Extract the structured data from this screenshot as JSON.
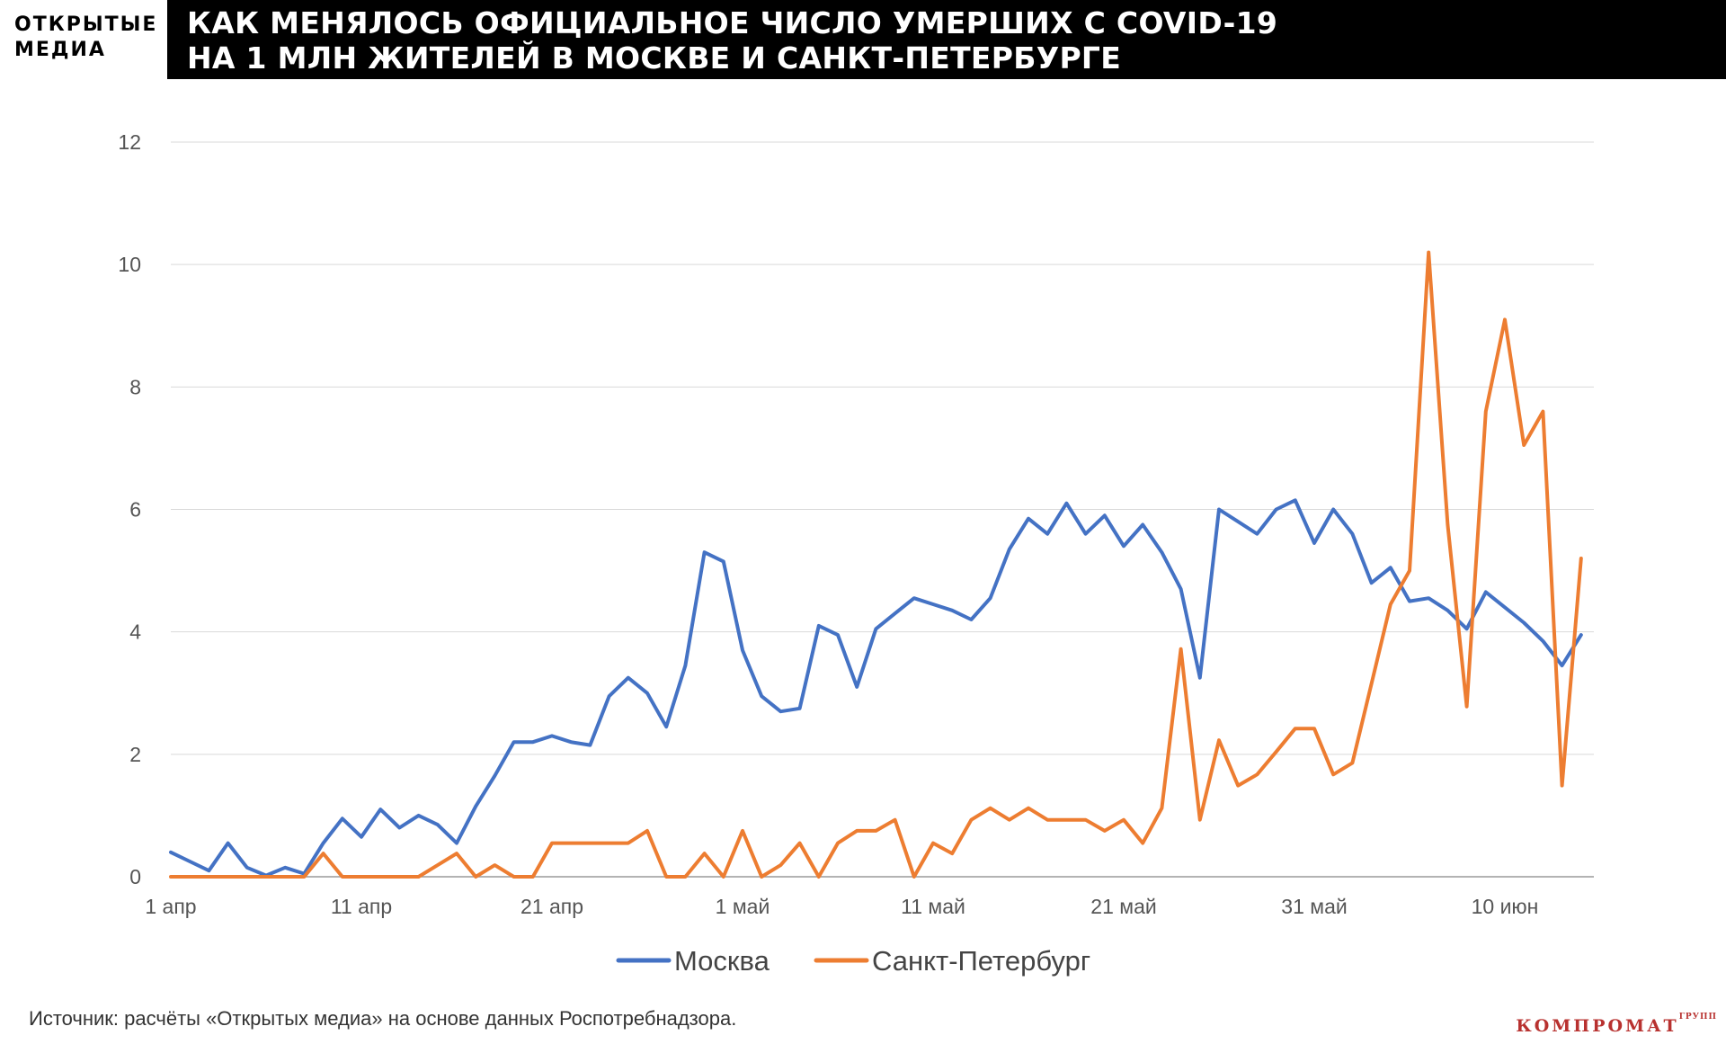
{
  "header": {
    "logo_line1": "ОТКРЫТЫЕ",
    "logo_line2": "МЕДИА",
    "title_line1": "КАК МЕНЯЛОСЬ ОФИЦИАЛЬНОЕ ЧИСЛО УМЕРШИХ С COVID-19",
    "title_line2": "НА 1 МЛН ЖИТЕЛЕЙ В МОСКВЕ И САНКТ-ПЕТЕРБУРГЕ"
  },
  "source": "Источник: расчёты «Открытых медиа» на основе данных Роспотребнадзора.",
  "watermark": {
    "text": "КОМПРОМАТ",
    "sup": "ГРУПП"
  },
  "chart_data": {
    "type": "line",
    "title": "",
    "xlabel": "",
    "ylabel": "",
    "ylim": [
      0,
      12
    ],
    "yticks": [
      0,
      2,
      4,
      6,
      8,
      10,
      12
    ],
    "xticks": [
      {
        "i": 0,
        "label": "1 апр"
      },
      {
        "i": 10,
        "label": "11 апр"
      },
      {
        "i": 20,
        "label": "21 апр"
      },
      {
        "i": 30,
        "label": "1 май"
      },
      {
        "i": 40,
        "label": "11 май"
      },
      {
        "i": 50,
        "label": "21 май"
      },
      {
        "i": 60,
        "label": "31 май"
      },
      {
        "i": 70,
        "label": "10 июн"
      }
    ],
    "grid": true,
    "legend_position": "bottom",
    "series": [
      {
        "name": "Москва",
        "color": "#4472c4",
        "values": [
          0.4,
          0.25,
          0.1,
          0.55,
          0.15,
          0.02,
          0.15,
          0.05,
          0.55,
          0.95,
          0.65,
          1.1,
          0.8,
          1.0,
          0.85,
          0.55,
          1.15,
          1.65,
          2.2,
          2.2,
          2.3,
          2.2,
          2.15,
          2.95,
          3.25,
          3.0,
          2.45,
          3.45,
          5.3,
          5.15,
          3.7,
          2.95,
          2.7,
          2.75,
          4.1,
          3.95,
          3.1,
          4.05,
          4.3,
          4.55,
          4.45,
          4.35,
          4.2,
          4.55,
          5.35,
          5.85,
          5.6,
          6.1,
          5.6,
          5.9,
          5.4,
          5.75,
          5.3,
          4.7,
          3.25,
          6.0,
          5.8,
          5.6,
          6.0,
          6.15,
          5.45,
          6.0,
          5.6,
          4.8,
          5.05,
          4.5,
          4.55,
          4.35,
          4.05,
          4.65,
          4.4,
          4.15,
          3.85,
          3.45,
          3.95
        ]
      },
      {
        "name": "Санкт-Петербург",
        "color": "#ed7d31",
        "values": [
          0,
          0,
          0,
          0,
          0,
          0,
          0,
          0,
          0.38,
          0,
          0,
          0,
          0,
          0,
          0.19,
          0.38,
          0,
          0.19,
          0,
          0,
          0.55,
          0.55,
          0.55,
          0.55,
          0.55,
          0.75,
          0,
          0,
          0.38,
          0,
          0.75,
          0,
          0.19,
          0.55,
          0,
          0.55,
          0.75,
          0.75,
          0.93,
          0,
          0.55,
          0.38,
          0.93,
          1.12,
          0.93,
          1.12,
          0.93,
          0.93,
          0.93,
          0.75,
          0.93,
          0.55,
          1.12,
          3.72,
          0.93,
          2.23,
          1.49,
          1.67,
          2.04,
          2.42,
          2.42,
          1.67,
          1.86,
          3.15,
          4.45,
          5.0,
          10.2,
          5.75,
          2.78,
          7.6,
          9.1,
          7.05,
          7.6,
          1.49,
          5.2
        ]
      }
    ]
  }
}
